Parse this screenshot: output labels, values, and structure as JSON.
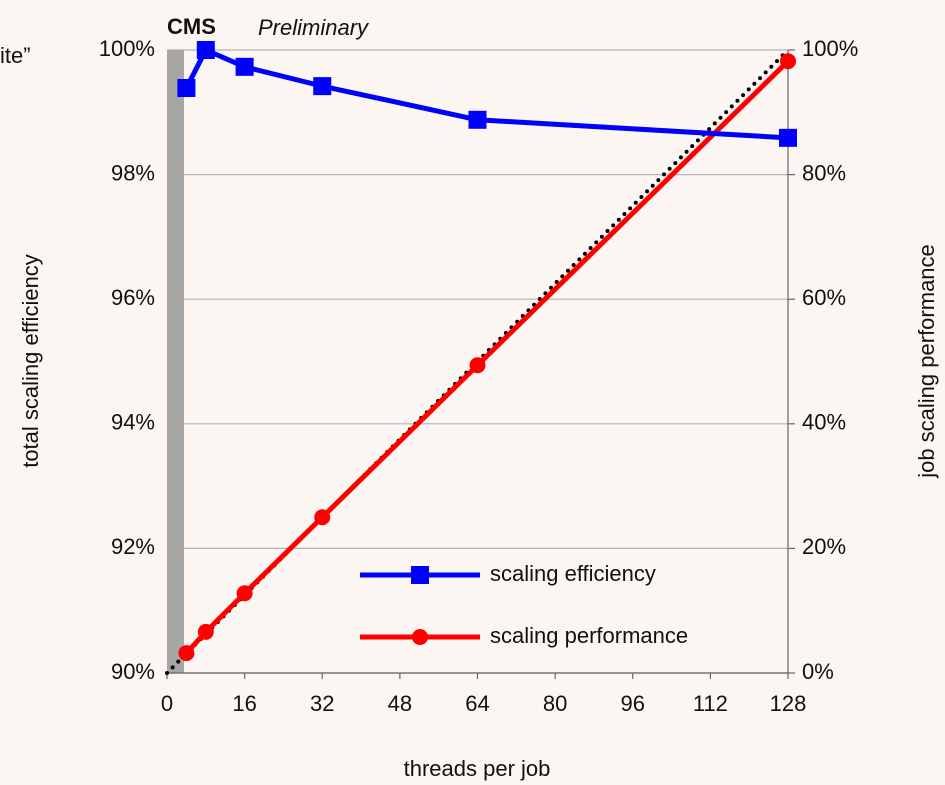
{
  "chart_data": {
    "type": "line",
    "title": "CMS",
    "subtitle": "Preliminary",
    "annotation": "ite”",
    "xlabel": "threads per job",
    "ylabel": "total scaling efficiency",
    "y2label": "job scaling performance",
    "xlim": [
      0,
      128
    ],
    "xticks": [
      0,
      16,
      32,
      48,
      64,
      80,
      96,
      112,
      128
    ],
    "ylim": [
      90,
      100
    ],
    "yticks": [
      {
        "value": 90,
        "label": "90%"
      },
      {
        "value": 92,
        "label": "92%"
      },
      {
        "value": 94,
        "label": "94%"
      },
      {
        "value": 96,
        "label": "96%"
      },
      {
        "value": 98,
        "label": "98%"
      },
      {
        "value": 100,
        "label": "100%"
      }
    ],
    "y2lim": [
      0,
      100
    ],
    "y2ticks": [
      {
        "value": 0,
        "label": "0%"
      },
      {
        "value": 20,
        "label": "20%"
      },
      {
        "value": 40,
        "label": "40%"
      },
      {
        "value": 60,
        "label": "60%"
      },
      {
        "value": 80,
        "label": "80%"
      },
      {
        "value": 100,
        "label": "100%"
      }
    ],
    "grid": true,
    "shaded_xrange": [
      0,
      3.5
    ],
    "legend": "lower right",
    "series": [
      {
        "name": "scaling efficiency",
        "color": "#0000ff",
        "marker": "square",
        "x": [
          4,
          8,
          16,
          32,
          64,
          128
        ],
        "values": [
          99.39,
          100,
          99.73,
          99.42,
          98.88,
          98.59
        ]
      },
      {
        "name": "scaling performance",
        "color": "#ff0000",
        "marker": "circle",
        "axis": "y2",
        "x": [
          4,
          8,
          16,
          32,
          64,
          128
        ],
        "values": [
          3.2,
          6.6,
          12.8,
          25.0,
          49.4,
          98.2
        ]
      },
      {
        "color": "#000000",
        "dotted": true,
        "axis": "y2",
        "x": [
          0,
          128
        ],
        "values": [
          0,
          100
        ]
      }
    ]
  }
}
